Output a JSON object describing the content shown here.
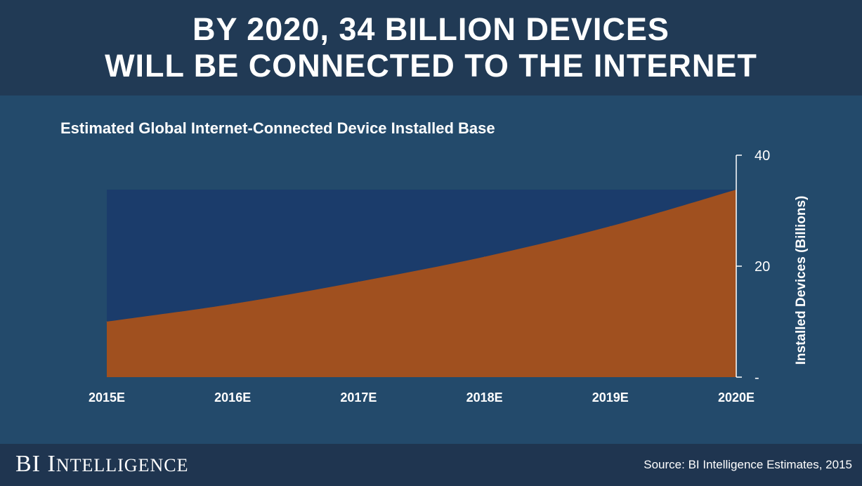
{
  "banner": {
    "line1": "BY 2020, 34 BILLION DEVICES",
    "line2": "WILL BE CONNECTED TO THE INTERNET"
  },
  "footer": {
    "brand": "BI Intelligence",
    "source": "Source: BI Intelligence Estimates, 2015"
  },
  "colors": {
    "background": "#234a6b",
    "banner": "#213a55",
    "plot_area": "#1b3c6b",
    "area_fill": "#a0501f",
    "text": "#ffffff"
  },
  "chart_data": {
    "type": "area",
    "title": "Estimated Global Internet-Connected Device Installed Base",
    "xlabel": "",
    "ylabel": "Installed Devices (Billions)",
    "categories": [
      "2015E",
      "2016E",
      "2017E",
      "2018E",
      "2019E",
      "2020E"
    ],
    "series": [
      {
        "values": [
          10,
          13.2,
          17.2,
          21.7,
          27.2,
          33.8
        ]
      }
    ],
    "yticks": [
      "-",
      "20",
      "40"
    ],
    "ylim": [
      0,
      40
    ],
    "y_axis_side": "right",
    "grid": false,
    "legend": "none"
  }
}
